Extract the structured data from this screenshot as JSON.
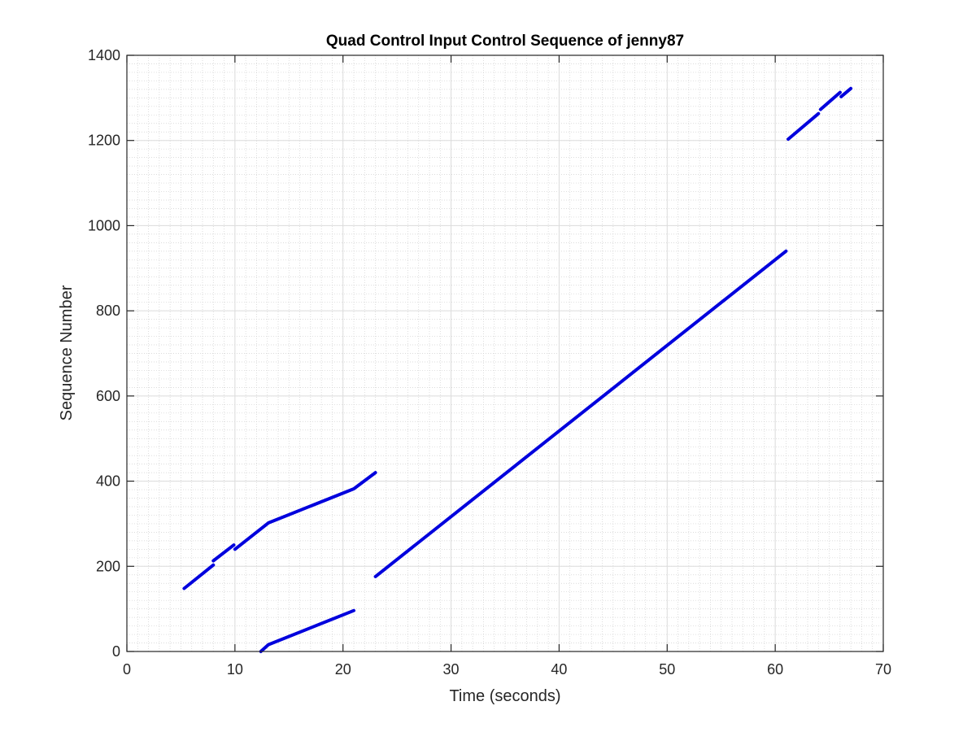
{
  "chart_data": {
    "type": "line",
    "title": "Quad Control Input Control Sequence of jenny87",
    "xlabel": "Time (seconds)",
    "ylabel": "Sequence Number",
    "xlim": [
      0,
      70
    ],
    "ylim": [
      0,
      1400
    ],
    "xticks": [
      0,
      10,
      20,
      30,
      40,
      50,
      60,
      70
    ],
    "yticks": [
      0,
      200,
      400,
      600,
      800,
      1000,
      1200,
      1400
    ],
    "grid": true,
    "minor_grid": true,
    "series_color": "#0000dd",
    "segments": [
      [
        [
          5.3,
          148
        ],
        [
          8.0,
          203
        ]
      ],
      [
        [
          8.0,
          213
        ],
        [
          9.9,
          250
        ]
      ],
      [
        [
          10.0,
          240
        ],
        [
          13.1,
          302
        ],
        [
          21.0,
          382
        ],
        [
          23.0,
          420
        ]
      ],
      [
        [
          12.4,
          0
        ],
        [
          13.1,
          16
        ],
        [
          21.0,
          96
        ]
      ],
      [
        [
          23.0,
          176
        ],
        [
          61.0,
          940
        ]
      ],
      [
        [
          61.2,
          1203
        ],
        [
          64.0,
          1263
        ]
      ],
      [
        [
          64.2,
          1273
        ],
        [
          66.0,
          1313
        ]
      ],
      [
        [
          66.1,
          1303
        ],
        [
          67.0,
          1322
        ]
      ]
    ]
  }
}
